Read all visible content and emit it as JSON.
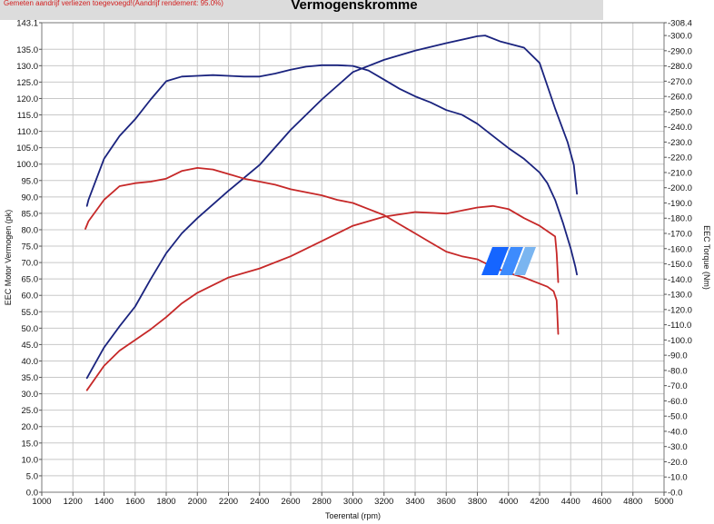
{
  "header": {
    "note": "Gemeten aandrijf verliezen toegevoegd!(Aandrijf rendement: 95.0%)",
    "title": "Vermogenskromme"
  },
  "chart_data": {
    "type": "line",
    "title": "Vermogenskromme",
    "xlabel": "Toerental (rpm)",
    "ylabel_left": "EEC Motor Vermogen (pk)",
    "ylabel_right": "EEC Torque (Nm)",
    "xlim": [
      1000,
      5000
    ],
    "ylim_left": [
      0,
      143.1
    ],
    "ylim_right": [
      0,
      308.4
    ],
    "x_ticks": [
      1000,
      1200,
      1400,
      1600,
      1800,
      2000,
      2200,
      2400,
      2600,
      2800,
      3000,
      3200,
      3400,
      3600,
      3800,
      4000,
      4200,
      4400,
      4600,
      4800,
      5000
    ],
    "y_left_ticks": [
      "0.0",
      "5.0",
      "10.0",
      "15.0",
      "20.0",
      "25.0",
      "30.0",
      "35.0",
      "40.0",
      "45.0",
      "50.0",
      "55.0",
      "60.0",
      "65.0",
      "70.0",
      "75.0",
      "80.0",
      "85.0",
      "90.0",
      "95.0",
      "100.0",
      "105.0",
      "110.0",
      "115.0",
      "120.0",
      "125.0",
      "130.0",
      "135.0",
      "143.1"
    ],
    "y_left_values": [
      0,
      5,
      10,
      15,
      20,
      25,
      30,
      35,
      40,
      45,
      50,
      55,
      60,
      65,
      70,
      75,
      80,
      85,
      90,
      95,
      100,
      105,
      110,
      115,
      120,
      125,
      130,
      135,
      143.1
    ],
    "y_right_ticks": [
      "0.0",
      "10.0",
      "20.0",
      "30.0",
      "40.0",
      "50.0",
      "60.0",
      "70.0",
      "80.0",
      "90.0",
      "100.0",
      "110.0",
      "120.0",
      "130.0",
      "140.0",
      "150.0",
      "160.0",
      "170.0",
      "180.0",
      "190.0",
      "200.0",
      "210.0",
      "220.0",
      "230.0",
      "240.0",
      "250.0",
      "260.0",
      "270.0",
      "280.0",
      "290.0",
      "300.0",
      "308.4"
    ],
    "y_right_values": [
      0,
      10,
      20,
      30,
      40,
      50,
      60,
      70,
      80,
      90,
      100,
      110,
      120,
      130,
      140,
      150,
      160,
      170,
      180,
      190,
      200,
      210,
      220,
      230,
      240,
      250,
      260,
      270,
      280,
      290,
      300,
      308.4
    ],
    "grid": true,
    "colors": {
      "blue": "#1a237e",
      "red": "#c62828",
      "grid": "#c8c8c8"
    },
    "series": [
      {
        "axis": "right",
        "color": "#1a237e",
        "x": [
          1290,
          1300,
          1400,
          1500,
          1600,
          1700,
          1800,
          1900,
          2000,
          2100,
          2200,
          2300,
          2400,
          2500,
          2600,
          2700,
          2800,
          2900,
          3000,
          3100,
          3200,
          3300,
          3400,
          3500,
          3600,
          3700,
          3800,
          3900,
          4000,
          4100,
          4200,
          4250,
          4300,
          4350,
          4400,
          4430,
          4440
        ],
        "y": [
          188,
          192,
          219,
          234,
          245,
          258,
          270,
          273,
          273.5,
          274,
          273.5,
          273,
          273,
          275,
          277.5,
          279.5,
          280.5,
          280.5,
          280,
          277,
          271,
          265,
          260,
          256,
          251,
          248,
          242,
          234,
          226,
          219,
          210,
          203,
          192,
          177,
          160,
          148,
          143
        ]
      },
      {
        "axis": "right",
        "color": "#1a237e",
        "x": [
          1290,
          1400,
          1500,
          1600,
          1700,
          1800,
          1900,
          2000,
          2200,
          2400,
          2600,
          2800,
          3000,
          3200,
          3400,
          3600,
          3800,
          3850,
          3950,
          4100,
          4200,
          4300,
          4380,
          4420,
          4440
        ],
        "y": [
          75,
          95,
          109,
          122,
          140,
          157,
          170,
          180,
          198,
          215,
          238,
          258,
          276,
          284,
          290,
          295,
          299.5,
          300,
          296,
          292,
          282,
          252,
          230,
          215,
          196
        ]
      },
      {
        "axis": "right",
        "color": "#c62828",
        "x": [
          1280,
          1300,
          1400,
          1500,
          1600,
          1700,
          1800,
          1900,
          2000,
          2100,
          2200,
          2300,
          2400,
          2500,
          2600,
          2700,
          2800,
          2900,
          3000,
          3100,
          3200,
          3300,
          3400,
          3500,
          3600,
          3700,
          3800,
          3900,
          4000,
          4100,
          4200,
          4250,
          4290,
          4310,
          4320
        ],
        "y": [
          173,
          178,
          192,
          201,
          203,
          204,
          206,
          211,
          213,
          212,
          209,
          206,
          204,
          202,
          199,
          197,
          195,
          192,
          190,
          186,
          182,
          176,
          170,
          164,
          158,
          155,
          153,
          148,
          144,
          141,
          137,
          135,
          132,
          126,
          104
        ]
      },
      {
        "axis": "right",
        "color": "#c62828",
        "x": [
          1290,
          1400,
          1500,
          1600,
          1700,
          1800,
          1900,
          2000,
          2200,
          2400,
          2600,
          2800,
          3000,
          3200,
          3400,
          3600,
          3800,
          3900,
          4000,
          4100,
          4200,
          4300,
          4310,
          4320
        ],
        "y": [
          67,
          83,
          93,
          100,
          107,
          115,
          124,
          131,
          141,
          147,
          155,
          165,
          175,
          181,
          184,
          183,
          187,
          188,
          186,
          180,
          175,
          168,
          157,
          138
        ]
      }
    ]
  }
}
